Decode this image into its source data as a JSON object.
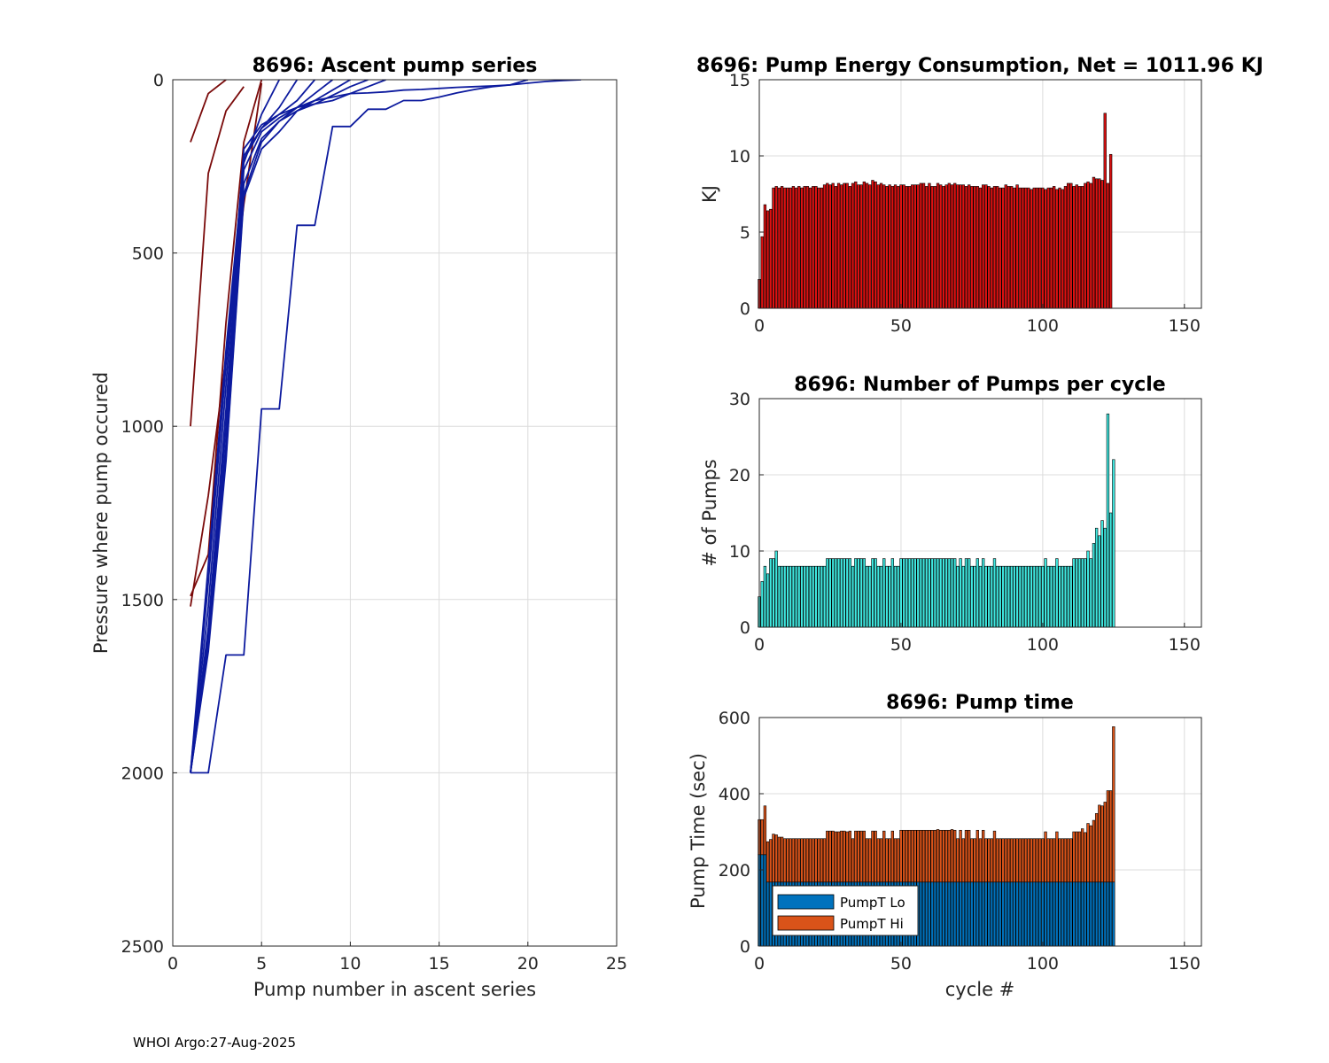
{
  "footer": "WHOI Argo:27-Aug-2025",
  "colors": {
    "profile_blue": "#0c1a9e",
    "profile_dark": "#7a0a0a",
    "energy_bar": "#dd1111",
    "pumps_bar": "#3fe8e0",
    "lo_bar": "#0072bd",
    "hi_bar": "#d95319",
    "grid": "#dcdcdc"
  },
  "chart_data": [
    {
      "id": "ascent",
      "type": "line",
      "title": "8696: Ascent pump series",
      "xlabel": "Pump number in ascent series",
      "ylabel": "Pressure where pump occured",
      "xlim": [
        0,
        25
      ],
      "ylim": [
        0,
        2500
      ],
      "y_reversed": true,
      "xticks": [
        0,
        5,
        10,
        15,
        20,
        25
      ],
      "yticks": [
        0,
        500,
        1000,
        1500,
        2000,
        2500
      ],
      "grid": true,
      "series": [
        {
          "name": "cycle-1",
          "color": "profile_dark",
          "x": [
            1,
            2,
            3
          ],
          "y": [
            180,
            40,
            0
          ]
        },
        {
          "name": "cycle-2",
          "color": "profile_dark",
          "x": [
            1,
            2,
            3,
            4
          ],
          "y": [
            1000,
            270,
            90,
            20
          ]
        },
        {
          "name": "cycle-3",
          "color": "profile_dark",
          "x": [
            1,
            2,
            3,
            4,
            5
          ],
          "y": [
            1520,
            1200,
            800,
            360,
            10
          ]
        },
        {
          "name": "cycle-4",
          "color": "profile_dark",
          "x": [
            1,
            2,
            3,
            4,
            5
          ],
          "y": [
            1490,
            1370,
            700,
            180,
            0
          ]
        },
        {
          "name": "cycle-5",
          "color": "profile_blue",
          "x": [
            1,
            2,
            3,
            4,
            5,
            6
          ],
          "y": [
            2000,
            1400,
            780,
            240,
            100,
            0
          ]
        },
        {
          "name": "cycle-6",
          "color": "profile_blue",
          "x": [
            1,
            2,
            3,
            4,
            5,
            6,
            7
          ],
          "y": [
            2000,
            1450,
            820,
            230,
            140,
            80,
            0
          ]
        },
        {
          "name": "cycle-7",
          "color": "profile_blue",
          "x": [
            1,
            2,
            3,
            4,
            5,
            6,
            7,
            8
          ],
          "y": [
            2000,
            1520,
            880,
            200,
            130,
            100,
            60,
            0
          ]
        },
        {
          "name": "cycle-8",
          "color": "profile_blue",
          "x": [
            1,
            2,
            3,
            4,
            5,
            6,
            7,
            8,
            9
          ],
          "y": [
            2000,
            1580,
            950,
            220,
            140,
            100,
            80,
            40,
            0
          ]
        },
        {
          "name": "cycle-9",
          "color": "profile_blue",
          "x": [
            1,
            2,
            3,
            4,
            5,
            6,
            7,
            8,
            9,
            10
          ],
          "y": [
            2000,
            1600,
            1000,
            260,
            150,
            110,
            80,
            60,
            30,
            0
          ]
        },
        {
          "name": "cycle-10",
          "color": "profile_blue",
          "x": [
            1,
            2,
            3,
            4,
            5,
            6,
            7,
            8,
            9,
            10,
            11
          ],
          "y": [
            2000,
            1620,
            1050,
            300,
            170,
            120,
            90,
            70,
            45,
            20,
            0
          ]
        },
        {
          "name": "cycle-11",
          "color": "profile_blue",
          "x": [
            1,
            2,
            3,
            4,
            5,
            6,
            7,
            8,
            9,
            10,
            11,
            12
          ],
          "y": [
            2000,
            1640,
            1090,
            330,
            180,
            120,
            80,
            70,
            60,
            40,
            20,
            0
          ]
        },
        {
          "name": "cycle-12",
          "color": "profile_blue",
          "x": [
            1,
            2,
            3,
            4,
            5,
            6,
            7,
            8,
            9,
            10,
            11,
            12,
            13,
            14,
            15,
            16,
            17,
            18,
            19,
            20
          ],
          "y": [
            2000,
            1650,
            1100,
            340,
            200,
            150,
            90,
            60,
            50,
            40,
            38,
            35,
            30,
            28,
            25,
            22,
            20,
            18,
            15,
            0
          ]
        },
        {
          "name": "cycle-13",
          "color": "profile_blue",
          "x": [
            1,
            2,
            3,
            4,
            5,
            6,
            7,
            8,
            9,
            10,
            11,
            12,
            13,
            14,
            15,
            16,
            17,
            18,
            19,
            20,
            21,
            22,
            23
          ],
          "y": [
            2000,
            2000,
            1660,
            1660,
            950,
            950,
            420,
            420,
            135,
            135,
            85,
            85,
            60,
            60,
            50,
            38,
            28,
            20,
            15,
            10,
            5,
            2,
            0
          ]
        }
      ]
    },
    {
      "id": "energy",
      "type": "bar",
      "title": "8696: Pump Energy Consumption,  Net = 1011.96 KJ",
      "xlabel": "",
      "ylabel": "KJ",
      "xlim": [
        0,
        156
      ],
      "ylim": [
        0,
        15
      ],
      "xticks": [
        0,
        50,
        100,
        150
      ],
      "yticks": [
        0,
        5,
        10,
        15
      ],
      "grid": true,
      "x_start": 0,
      "values": [
        1.9,
        4.7,
        6.8,
        6.4,
        6.5,
        7.9,
        8.0,
        7.9,
        8.0,
        7.9,
        7.9,
        7.9,
        8.0,
        7.9,
        8.0,
        7.9,
        8.0,
        8.0,
        7.9,
        8.0,
        8.0,
        7.9,
        7.9,
        8.1,
        8.2,
        8.1,
        8.2,
        8.0,
        8.2,
        8.1,
        8.2,
        8.2,
        8.0,
        8.2,
        8.3,
        8.1,
        8.1,
        8.3,
        8.2,
        8.1,
        8.4,
        8.3,
        8.1,
        8.2,
        8.1,
        8.0,
        8.1,
        8.0,
        8.1,
        8.0,
        8.1,
        8.1,
        8.0,
        8.0,
        8.1,
        8.1,
        8.1,
        8.2,
        8.2,
        8.0,
        8.2,
        8.0,
        8.0,
        8.2,
        8.1,
        8.0,
        8.1,
        8.2,
        8.1,
        8.2,
        8.1,
        8.1,
        8.1,
        8.0,
        8.1,
        8.0,
        8.0,
        8.0,
        7.9,
        8.1,
        8.1,
        8.0,
        7.9,
        8.0,
        8.0,
        7.9,
        7.9,
        8.1,
        8.0,
        8.0,
        7.9,
        8.1,
        7.9,
        7.9,
        7.9,
        7.9,
        7.8,
        7.9,
        7.9,
        7.9,
        7.9,
        7.8,
        7.9,
        7.9,
        8.0,
        7.8,
        7.9,
        7.8,
        8.0,
        8.2,
        8.2,
        8.0,
        8.1,
        8.0,
        8.0,
        8.2,
        8.3,
        8.2,
        8.6,
        8.5,
        8.5,
        8.4,
        12.8,
        8.2,
        10.1
      ]
    },
    {
      "id": "pumps",
      "type": "bar",
      "title": "8696: Number of Pumps per cycle",
      "xlabel": "",
      "ylabel": "# of Pumps",
      "xlim": [
        0,
        156
      ],
      "ylim": [
        0,
        30
      ],
      "xticks": [
        0,
        50,
        100,
        150
      ],
      "yticks": [
        0,
        10,
        20,
        30
      ],
      "grid": true,
      "x_start": 0,
      "values": [
        4,
        6,
        8,
        7,
        9,
        9,
        10,
        8,
        8,
        8,
        8,
        8,
        8,
        8,
        8,
        8,
        8,
        8,
        8,
        8,
        8,
        8,
        8,
        8,
        9,
        9,
        9,
        9,
        9,
        9,
        9,
        9,
        9,
        8,
        9,
        9,
        9,
        9,
        8,
        8,
        9,
        9,
        8,
        8,
        9,
        8,
        8,
        9,
        8,
        8,
        9,
        9,
        9,
        9,
        9,
        9,
        9,
        9,
        9,
        9,
        9,
        9,
        9,
        9,
        9,
        9,
        9,
        9,
        9,
        9,
        8,
        9,
        8,
        9,
        9,
        8,
        8,
        9,
        8,
        9,
        8,
        8,
        8,
        9,
        8,
        8,
        8,
        8,
        8,
        8,
        8,
        8,
        8,
        8,
        8,
        8,
        8,
        8,
        8,
        8,
        8,
        9,
        8,
        8,
        8,
        9,
        8,
        8,
        8,
        8,
        8,
        9,
        9,
        9,
        9,
        9,
        10,
        9,
        11,
        13,
        12,
        14,
        13,
        28,
        15,
        22
      ]
    },
    {
      "id": "pumptime",
      "type": "bar",
      "title": "8696: Pump time",
      "xlabel": "cycle #",
      "ylabel": "Pump Time (sec)",
      "xlim": [
        0,
        156
      ],
      "ylim": [
        0,
        600
      ],
      "xticks": [
        0,
        50,
        100,
        150
      ],
      "yticks": [
        0,
        200,
        400,
        600
      ],
      "grid": true,
      "legend": "bottom-left",
      "x_start": 0,
      "series": [
        {
          "name": "PumpT Lo",
          "color": "lo_bar",
          "values": [
            240,
            240,
            240,
            168,
            168,
            168,
            168,
            168,
            168,
            168,
            168,
            168,
            168,
            168,
            168,
            168,
            168,
            168,
            168,
            168,
            168,
            168,
            168,
            168,
            168,
            168,
            168,
            168,
            168,
            168,
            168,
            168,
            168,
            168,
            168,
            168,
            168,
            168,
            168,
            168,
            168,
            168,
            168,
            168,
            168,
            168,
            168,
            168,
            168,
            168,
            168,
            168,
            168,
            168,
            168,
            168,
            168,
            168,
            168,
            168,
            168,
            168,
            168,
            168,
            168,
            168,
            168,
            168,
            168,
            168,
            168,
            168,
            168,
            168,
            168,
            168,
            168,
            168,
            168,
            168,
            168,
            168,
            168,
            168,
            168,
            168,
            168,
            168,
            168,
            168,
            168,
            168,
            168,
            168,
            168,
            168,
            168,
            168,
            168,
            168,
            168,
            168,
            168,
            168,
            168,
            168,
            168,
            168,
            168,
            168,
            168,
            168,
            168,
            168,
            168,
            168,
            168,
            168,
            168,
            168,
            168,
            168,
            168,
            168,
            168,
            168
          ]
        },
        {
          "name": "PumpT Hi",
          "color": "hi_bar",
          "values": [
            92,
            92,
            128,
            106,
            112,
            126,
            124,
            118,
            118,
            114,
            114,
            114,
            114,
            114,
            114,
            114,
            114,
            114,
            114,
            114,
            114,
            114,
            114,
            114,
            134,
            134,
            134,
            132,
            132,
            134,
            134,
            132,
            134,
            114,
            134,
            134,
            134,
            134,
            114,
            114,
            134,
            134,
            114,
            114,
            134,
            114,
            114,
            134,
            114,
            114,
            136,
            136,
            136,
            136,
            136,
            136,
            136,
            136,
            136,
            136,
            136,
            136,
            136,
            138,
            136,
            136,
            136,
            136,
            138,
            136,
            114,
            136,
            114,
            136,
            136,
            114,
            114,
            136,
            114,
            136,
            114,
            114,
            114,
            134,
            114,
            114,
            114,
            114,
            114,
            114,
            114,
            114,
            114,
            114,
            114,
            114,
            114,
            114,
            114,
            114,
            114,
            132,
            114,
            114,
            114,
            132,
            114,
            114,
            114,
            114,
            114,
            132,
            132,
            132,
            140,
            130,
            154,
            148,
            162,
            180,
            202,
            200,
            210,
            240,
            240,
            408
          ]
        }
      ]
    }
  ]
}
